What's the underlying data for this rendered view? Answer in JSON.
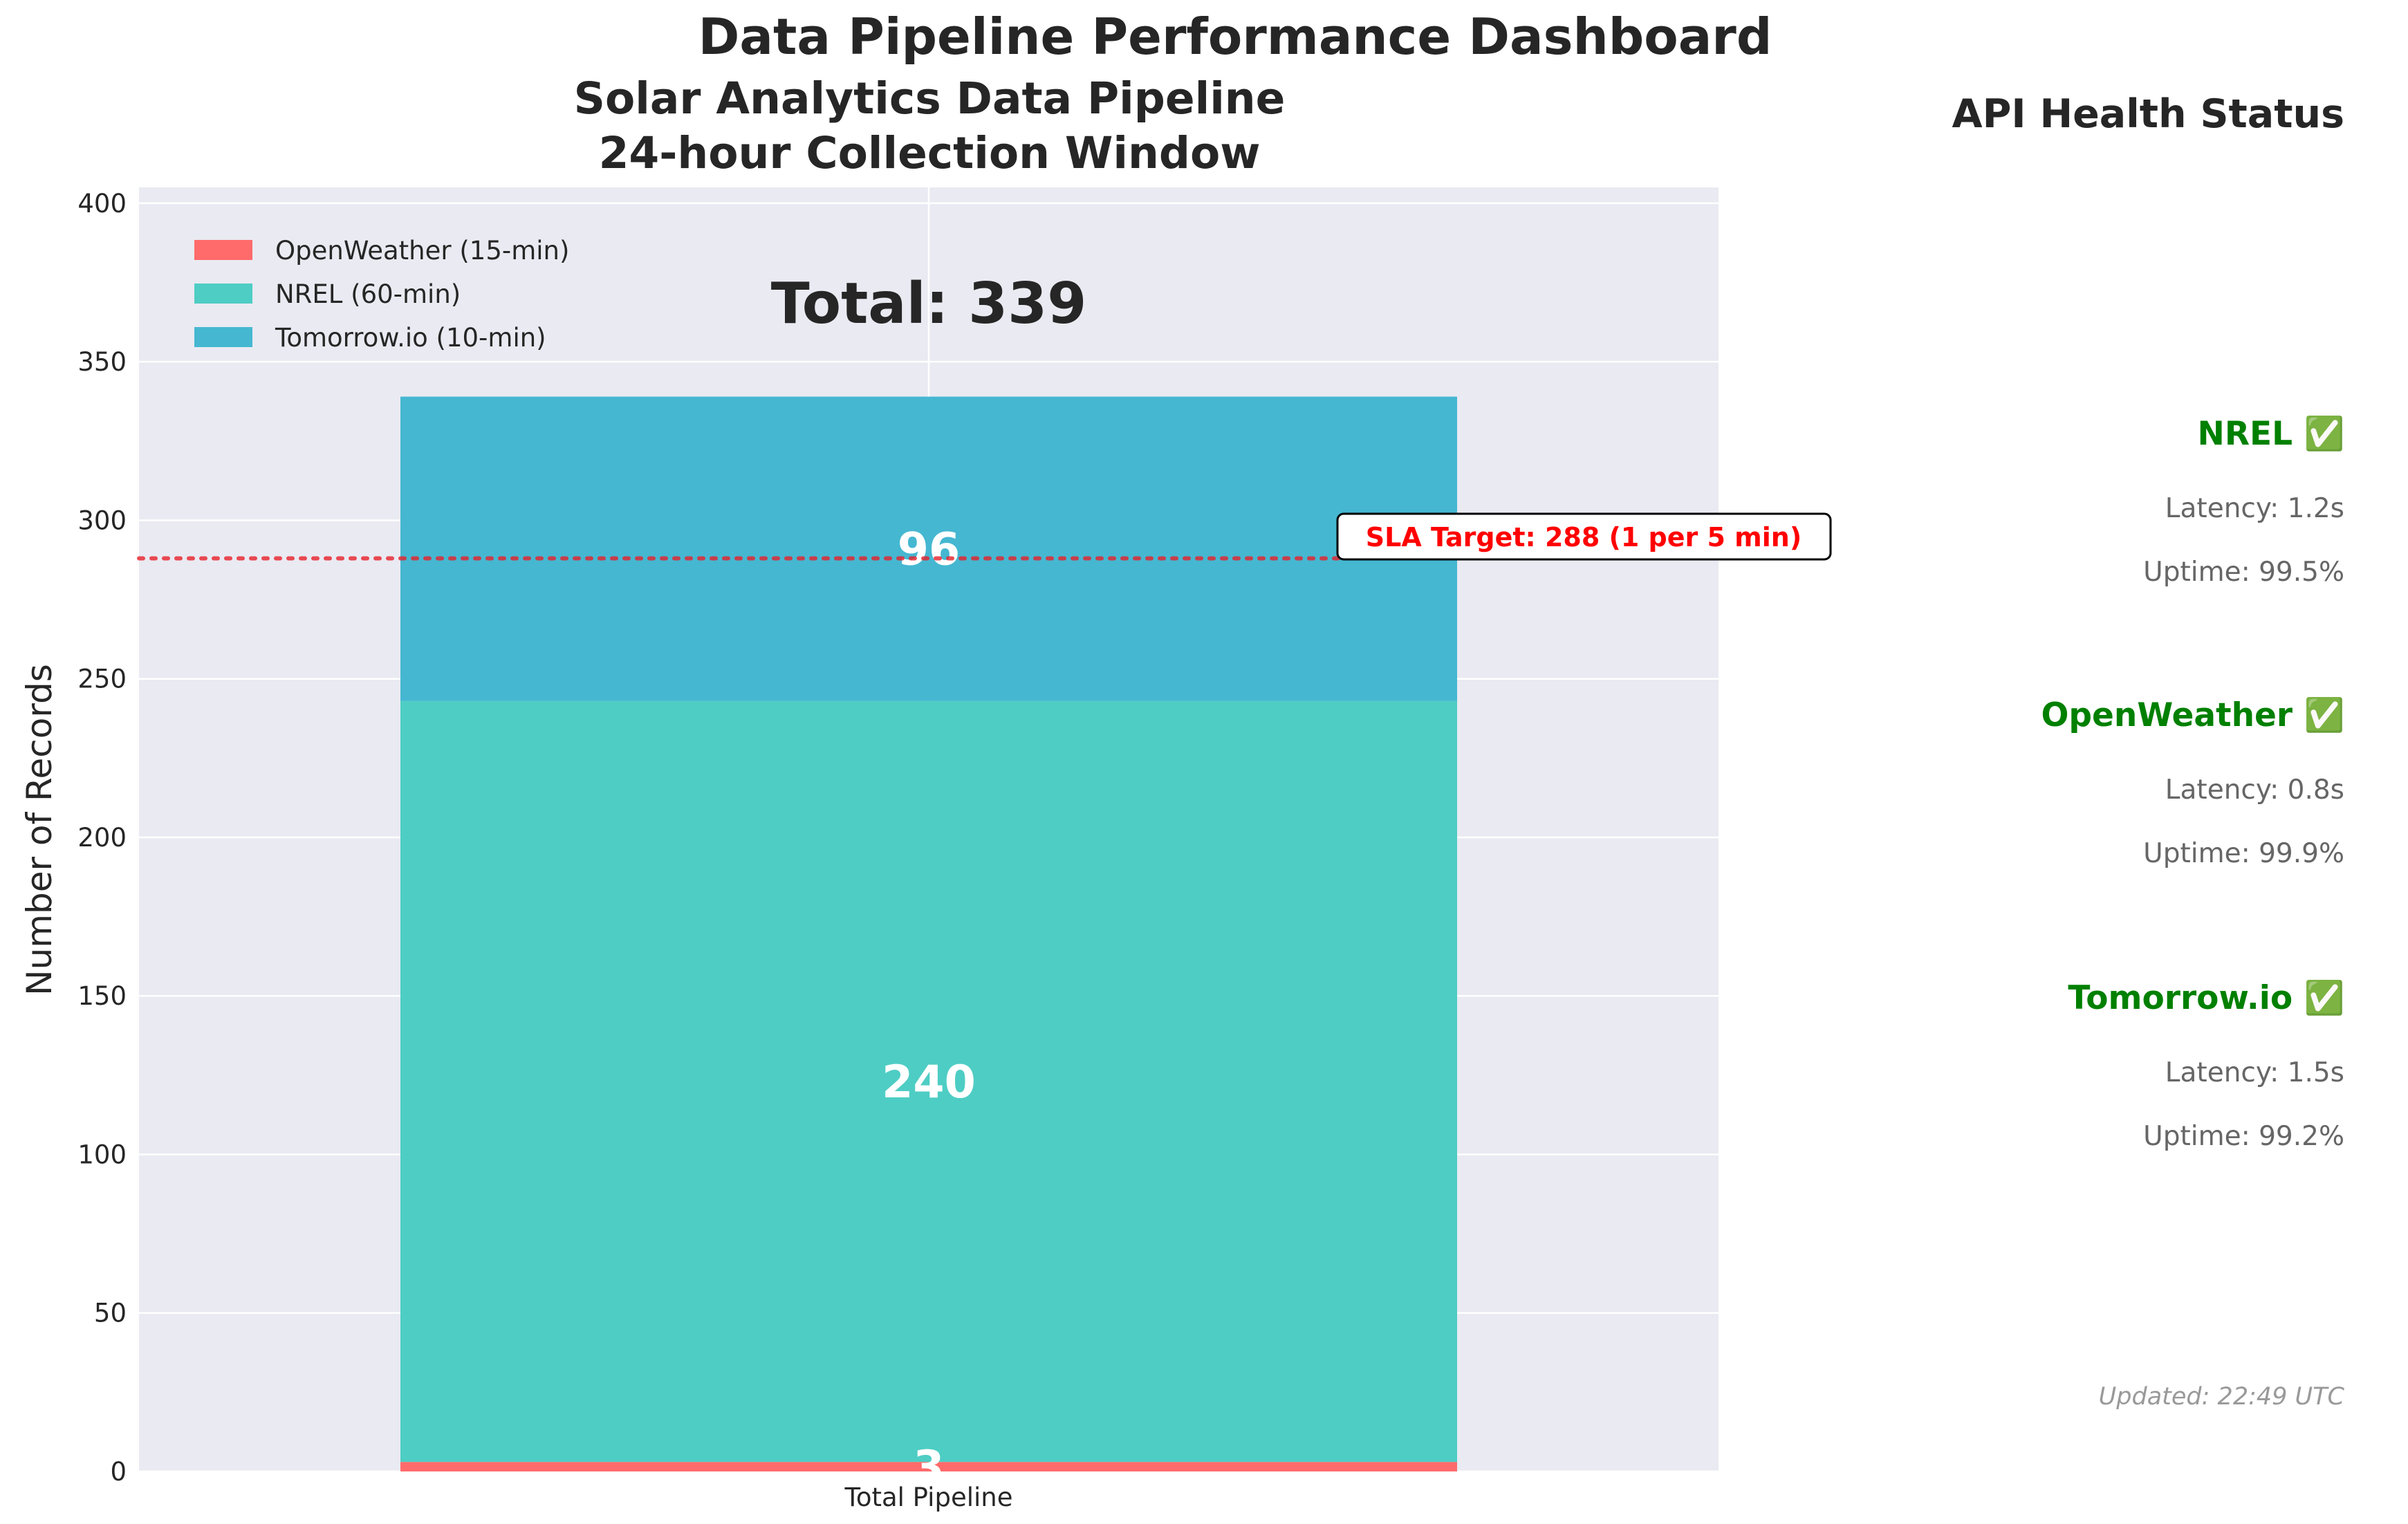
{
  "page": {
    "title": "Data Pipeline Performance Dashboard"
  },
  "chart_data": {
    "type": "bar",
    "stacked": true,
    "title": "Solar Analytics Data Pipeline\n24-hour Collection Window",
    "title_lines": [
      "Solar Analytics Data Pipeline",
      "24-hour Collection Window"
    ],
    "xlabel": "",
    "ylabel": "Number of Records",
    "categories": [
      "Total Pipeline"
    ],
    "ylim": [
      0,
      405
    ],
    "yticks": [
      0,
      50,
      100,
      150,
      200,
      250,
      300,
      350,
      400
    ],
    "grid": true,
    "legend_position": "top-left",
    "series": [
      {
        "name": "OpenWeather (15-min)",
        "values": [
          3
        ],
        "color": "#ff6b6b",
        "label": "3"
      },
      {
        "name": "NREL (60-min)",
        "values": [
          240
        ],
        "color": "#4ecdc4",
        "label": "240"
      },
      {
        "name": "Tomorrow.io (10-min)",
        "values": [
          96
        ],
        "color": "#45b7d1",
        "label": "96"
      }
    ],
    "total": {
      "value": 339,
      "label": "Total: 339"
    },
    "reference_line": {
      "value": 288,
      "label": "SLA Target: 288 (1 per 5 min)",
      "color": "#e8202a"
    }
  },
  "health_panel": {
    "title": "API Health Status",
    "status_color": "#008000",
    "apis": [
      {
        "name": "NREL ✅",
        "latency": "Latency: 1.2s",
        "uptime": "Uptime: 99.5%"
      },
      {
        "name": "OpenWeather ✅",
        "latency": "Latency: 0.8s",
        "uptime": "Uptime: 99.9%"
      },
      {
        "name": "Tomorrow.io ✅",
        "latency": "Latency: 1.5s",
        "uptime": "Uptime: 99.2%"
      }
    ],
    "updated": "Updated: 22:49 UTC"
  },
  "colors": {
    "plot_background": "#eaeaf2",
    "grid": "#ffffff",
    "text": "#262626",
    "muted_text": "#666666",
    "faint_text": "#999999"
  }
}
